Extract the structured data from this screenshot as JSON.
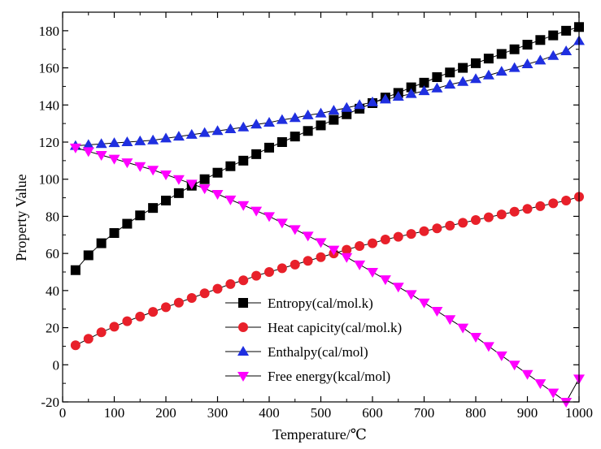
{
  "chart_data": {
    "type": "line",
    "title": "",
    "xlabel": "Temperature/℃",
    "ylabel": "Property Value",
    "xlim": [
      0,
      1000
    ],
    "ylim": [
      -20,
      190
    ],
    "xticks": [
      0,
      100,
      200,
      300,
      400,
      500,
      600,
      700,
      800,
      900,
      1000
    ],
    "yticks": [
      -20,
      0,
      20,
      40,
      60,
      80,
      100,
      120,
      140,
      160,
      180
    ],
    "x": [
      25,
      50,
      75,
      100,
      125,
      150,
      175,
      200,
      225,
      250,
      275,
      300,
      325,
      350,
      375,
      400,
      425,
      450,
      475,
      500,
      525,
      550,
      575,
      600,
      625,
      650,
      675,
      700,
      725,
      750,
      775,
      800,
      825,
      850,
      875,
      900,
      925,
      950,
      975,
      1000
    ],
    "legend_position": "center-bottom",
    "series": [
      {
        "name": "Entropy(cal/mol.k)",
        "marker": "square",
        "color": "#000000",
        "values": [
          51,
          59,
          65.5,
          71,
          76,
          80.5,
          84.5,
          88.5,
          92.5,
          96.5,
          100,
          103.5,
          107,
          110,
          113.5,
          117,
          120,
          123,
          126,
          129,
          132,
          135,
          138,
          141,
          144,
          146.5,
          149.5,
          152,
          155,
          157.5,
          160,
          162.5,
          165,
          167.5,
          170,
          172.5,
          175,
          177.5,
          180,
          182
        ]
      },
      {
        "name": "Heat capicity(cal/mol.k)",
        "marker": "circle",
        "color": "#e8202a",
        "values": [
          10.5,
          14,
          17.5,
          20.5,
          23.5,
          26,
          28.5,
          31,
          33.5,
          36,
          38.5,
          41,
          43.5,
          45.5,
          48,
          50,
          52,
          54,
          56,
          58,
          60,
          62,
          64,
          65.5,
          67.5,
          69,
          70.5,
          72,
          73.5,
          75,
          76.5,
          78,
          79.5,
          81,
          82.5,
          84,
          85.5,
          87,
          88.5,
          90.5
        ]
      },
      {
        "name": "Enthalpy(cal/mol)",
        "marker": "triangle-up",
        "color": "#1f2fe0",
        "values": [
          118,
          118.5,
          119,
          119.5,
          120,
          120.5,
          121,
          122,
          123,
          124,
          125,
          126,
          127,
          128,
          129.5,
          130.5,
          132,
          133,
          134.5,
          135.5,
          137,
          138.5,
          140,
          141.5,
          143,
          144.5,
          146,
          147.5,
          149,
          151,
          152.5,
          154,
          156,
          158,
          160,
          162,
          164,
          166.5,
          169,
          174.5
        ]
      },
      {
        "name": "Free energy(kcal/mol)",
        "marker": "triangle-down",
        "color": "#ff00ff",
        "values": [
          117,
          115,
          113,
          111,
          109,
          107,
          105,
          102.5,
          100,
          97.5,
          95,
          92,
          89,
          86,
          83,
          80,
          76.5,
          73,
          69.5,
          66,
          62,
          58,
          54,
          50,
          46,
          42,
          38,
          33.5,
          29,
          24.5,
          20,
          15,
          10,
          5,
          0,
          -5,
          -10,
          -15,
          -20,
          -7.5
        ]
      }
    ]
  }
}
